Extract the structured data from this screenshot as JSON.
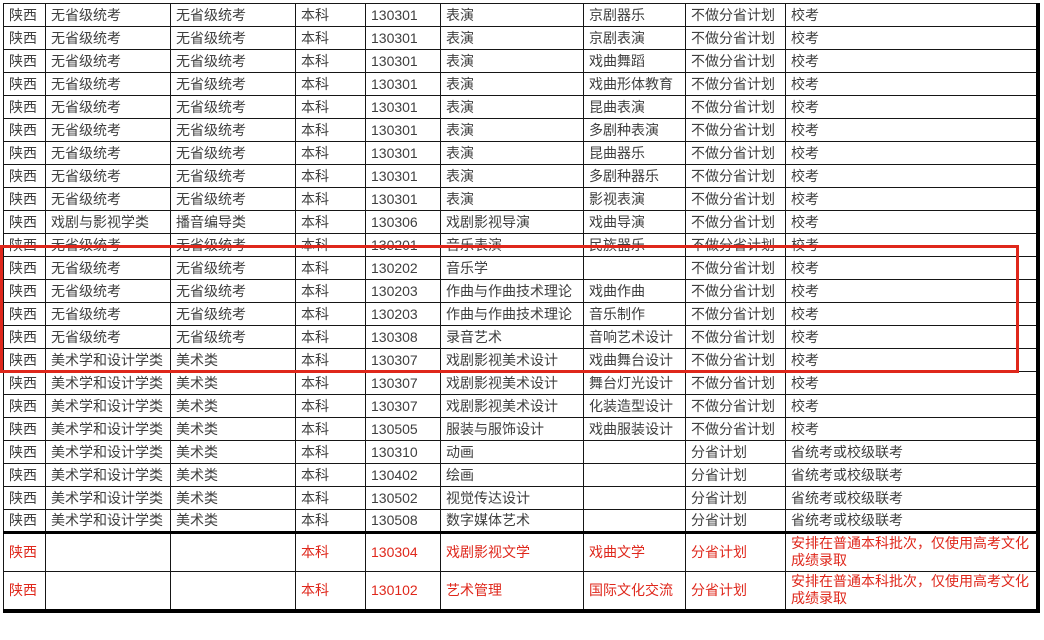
{
  "colors": {
    "grid_line": "#161616",
    "text": "#3e3e3e",
    "red_accent": "#df271b",
    "background": "#ffffff"
  },
  "highlight_box": {
    "purpose": "red-annotation-rectangle",
    "color": "#df271b",
    "first_highlighted_code": "130201",
    "last_highlighted_code": "130308"
  },
  "table": {
    "rows": [
      {
        "cells": [
          "陕西",
          "无省级统考",
          "无省级统考",
          "本科",
          "130301",
          "表演",
          "京剧器乐",
          "不做分省计划",
          "校考"
        ]
      },
      {
        "cells": [
          "陕西",
          "无省级统考",
          "无省级统考",
          "本科",
          "130301",
          "表演",
          "京剧表演",
          "不做分省计划",
          "校考"
        ]
      },
      {
        "cells": [
          "陕西",
          "无省级统考",
          "无省级统考",
          "本科",
          "130301",
          "表演",
          "戏曲舞蹈",
          "不做分省计划",
          "校考"
        ]
      },
      {
        "cells": [
          "陕西",
          "无省级统考",
          "无省级统考",
          "本科",
          "130301",
          "表演",
          "戏曲形体教育",
          "不做分省计划",
          "校考"
        ]
      },
      {
        "cells": [
          "陕西",
          "无省级统考",
          "无省级统考",
          "本科",
          "130301",
          "表演",
          "昆曲表演",
          "不做分省计划",
          "校考"
        ]
      },
      {
        "cells": [
          "陕西",
          "无省级统考",
          "无省级统考",
          "本科",
          "130301",
          "表演",
          "多剧种表演",
          "不做分省计划",
          "校考"
        ]
      },
      {
        "cells": [
          "陕西",
          "无省级统考",
          "无省级统考",
          "本科",
          "130301",
          "表演",
          "昆曲器乐",
          "不做分省计划",
          "校考"
        ]
      },
      {
        "cells": [
          "陕西",
          "无省级统考",
          "无省级统考",
          "本科",
          "130301",
          "表演",
          "多剧种器乐",
          "不做分省计划",
          "校考"
        ]
      },
      {
        "cells": [
          "陕西",
          "无省级统考",
          "无省级统考",
          "本科",
          "130301",
          "表演",
          "影视表演",
          "不做分省计划",
          "校考"
        ]
      },
      {
        "cells": [
          "陕西",
          "戏剧与影视学类",
          "播音编导类",
          "本科",
          "130306",
          "戏剧影视导演",
          "戏曲导演",
          "不做分省计划",
          "校考"
        ]
      },
      {
        "cells": [
          "陕西",
          "无省级统考",
          "无省级统考",
          "本科",
          "130201",
          "音乐表演",
          "民族器乐",
          "不做分省计划",
          "校考"
        ],
        "highlighted": true
      },
      {
        "cells": [
          "陕西",
          "无省级统考",
          "无省级统考",
          "本科",
          "130202",
          "音乐学",
          "",
          "不做分省计划",
          "校考"
        ],
        "highlighted": true
      },
      {
        "cells": [
          "陕西",
          "无省级统考",
          "无省级统考",
          "本科",
          "130203",
          "作曲与作曲技术理论",
          "戏曲作曲",
          "不做分省计划",
          "校考"
        ],
        "highlighted": true
      },
      {
        "cells": [
          "陕西",
          "无省级统考",
          "无省级统考",
          "本科",
          "130203",
          "作曲与作曲技术理论",
          "音乐制作",
          "不做分省计划",
          "校考"
        ],
        "highlighted": true
      },
      {
        "cells": [
          "陕西",
          "无省级统考",
          "无省级统考",
          "本科",
          "130308",
          "录音艺术",
          "音响艺术设计",
          "不做分省计划",
          "校考"
        ],
        "highlighted": true
      },
      {
        "cells": [
          "陕西",
          "美术学和设计学类",
          "美术类",
          "本科",
          "130307",
          "戏剧影视美术设计",
          "戏曲舞台设计",
          "不做分省计划",
          "校考"
        ]
      },
      {
        "cells": [
          "陕西",
          "美术学和设计学类",
          "美术类",
          "本科",
          "130307",
          "戏剧影视美术设计",
          "舞台灯光设计",
          "不做分省计划",
          "校考"
        ]
      },
      {
        "cells": [
          "陕西",
          "美术学和设计学类",
          "美术类",
          "本科",
          "130307",
          "戏剧影视美术设计",
          "化装造型设计",
          "不做分省计划",
          "校考"
        ]
      },
      {
        "cells": [
          "陕西",
          "美术学和设计学类",
          "美术类",
          "本科",
          "130505",
          "服装与服饰设计",
          "戏曲服装设计",
          "不做分省计划",
          "校考"
        ]
      },
      {
        "cells": [
          "陕西",
          "美术学和设计学类",
          "美术类",
          "本科",
          "130310",
          "动画",
          "",
          "分省计划",
          "省统考或校级联考"
        ]
      },
      {
        "cells": [
          "陕西",
          "美术学和设计学类",
          "美术类",
          "本科",
          "130402",
          "绘画",
          "",
          "分省计划",
          "省统考或校级联考"
        ]
      },
      {
        "cells": [
          "陕西",
          "美术学和设计学类",
          "美术类",
          "本科",
          "130502",
          "视觉传达设计",
          "",
          "分省计划",
          "省统考或校级联考"
        ]
      },
      {
        "cells": [
          "陕西",
          "美术学和设计学类",
          "美术类",
          "本科",
          "130508",
          "数字媒体艺术",
          "",
          "分省计划",
          "省统考或校级联考"
        ]
      },
      {
        "cells": [
          "陕西",
          "",
          "",
          "本科",
          "130304",
          "戏剧影视文学",
          "戏曲文学",
          "分省计划",
          "安排在普通本科批次，仅使用高考文化成绩录取"
        ],
        "red": true,
        "tall": true,
        "thick_top": true
      },
      {
        "cells": [
          "陕西",
          "",
          "",
          "本科",
          "130102",
          "艺术管理",
          "国际文化交流",
          "分省计划",
          "安排在普通本科批次，仅使用高考文化成绩录取"
        ],
        "red": true,
        "tall": true
      }
    ]
  }
}
